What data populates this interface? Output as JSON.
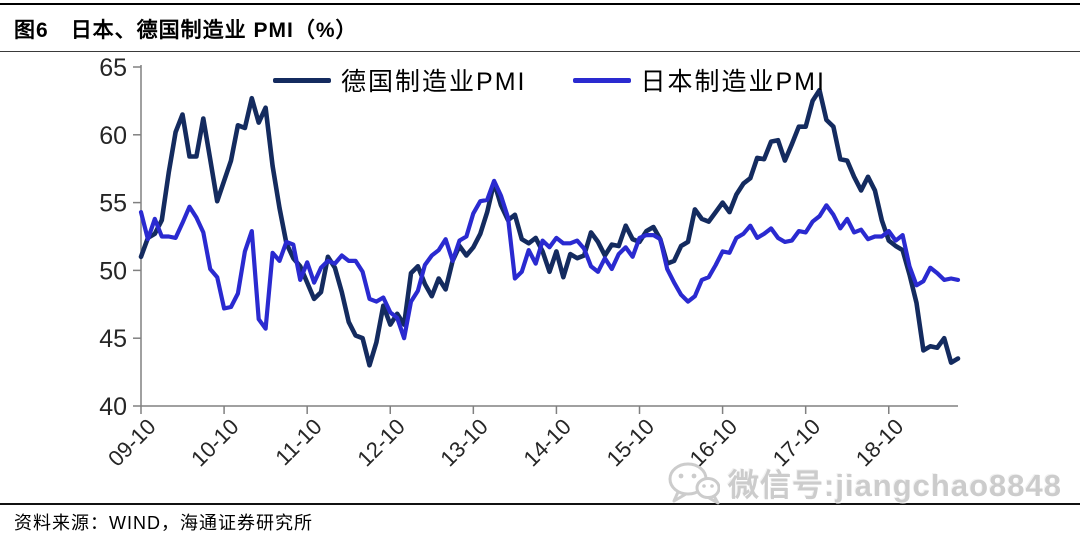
{
  "header": {
    "figure_label": "图6",
    "title": "日本、德国制造业 PMI（%）"
  },
  "source": {
    "label": "资料来源：WIND，海通证券研究所"
  },
  "watermark": {
    "icon": "wechat-icon",
    "text": "微信号:jiangchao8848"
  },
  "chart_data": {
    "type": "line",
    "title": "日本、德国制造业 PMI（%）",
    "ylabel": "PMI (%)",
    "ylim": [
      40,
      65
    ],
    "y_ticks": [
      65,
      60,
      55,
      50,
      45,
      40
    ],
    "grid": false,
    "legend_position": "top-center",
    "frequency": "monthly",
    "x_start": "2009-10",
    "x_end": "2019-08",
    "x_tick_labels": [
      "09-10",
      "10-10",
      "11-10",
      "12-10",
      "13-10",
      "14-10",
      "15-10",
      "16-10",
      "17-10",
      "18-10"
    ],
    "x_tick_month_indices": [
      0,
      12,
      24,
      36,
      48,
      60,
      72,
      84,
      96,
      108
    ],
    "axis_color": "#808080",
    "label_color": "#262626",
    "series": [
      {
        "name": "德国制造业PMI",
        "color": "#142B5F",
        "values": [
          51.0,
          52.4,
          52.7,
          53.7,
          57.2,
          60.2,
          61.5,
          58.4,
          58.4,
          61.2,
          58.2,
          55.1,
          56.6,
          58.1,
          60.7,
          60.5,
          62.7,
          60.9,
          62.0,
          57.7,
          54.6,
          52.0,
          50.9,
          50.3,
          49.1,
          47.9,
          48.4,
          51.0,
          50.2,
          48.4,
          46.2,
          45.2,
          45.0,
          43.0,
          44.7,
          47.4,
          46.0,
          46.8,
          46.0,
          49.8,
          50.3,
          49.0,
          48.1,
          49.4,
          48.6,
          50.7,
          51.8,
          51.1,
          51.7,
          52.7,
          54.3,
          56.5,
          54.8,
          53.7,
          54.1,
          52.3,
          52.0,
          52.4,
          51.4,
          49.9,
          51.4,
          49.5,
          51.2,
          50.9,
          51.1,
          52.8,
          52.1,
          51.1,
          51.9,
          51.8,
          53.3,
          52.3,
          52.1,
          52.9,
          53.2,
          52.3,
          50.5,
          50.7,
          51.8,
          52.1,
          54.5,
          53.8,
          53.6,
          54.3,
          55.0,
          54.3,
          55.6,
          56.4,
          56.8,
          58.3,
          58.2,
          59.5,
          59.6,
          58.1,
          59.3,
          60.6,
          60.6,
          62.5,
          63.3,
          61.1,
          60.6,
          58.2,
          58.1,
          56.9,
          55.9,
          56.9,
          55.9,
          53.7,
          52.2,
          51.8,
          51.5,
          49.7,
          47.6,
          44.1,
          44.4,
          44.3,
          45.0,
          43.2,
          43.5
        ]
      },
      {
        "name": "日本制造业PMI",
        "color": "#2A2AD0",
        "values": [
          54.3,
          52.3,
          53.8,
          52.5,
          52.5,
          52.4,
          53.5,
          54.7,
          53.9,
          52.8,
          50.1,
          49.5,
          47.2,
          47.3,
          48.3,
          51.4,
          52.9,
          46.4,
          45.7,
          51.3,
          50.7,
          52.1,
          51.9,
          49.3,
          50.6,
          49.1,
          50.2,
          50.7,
          50.5,
          51.1,
          50.7,
          50.7,
          49.9,
          47.9,
          47.7,
          48.0,
          46.9,
          46.5,
          45.0,
          47.7,
          48.5,
          50.4,
          51.1,
          51.5,
          52.3,
          50.7,
          52.2,
          52.5,
          54.2,
          55.1,
          55.2,
          56.6,
          55.5,
          53.9,
          49.4,
          49.9,
          51.5,
          50.5,
          52.2,
          51.7,
          52.4,
          52.0,
          52.0,
          52.2,
          51.6,
          50.3,
          49.9,
          50.9,
          50.1,
          51.2,
          51.7,
          51.0,
          52.4,
          52.6,
          52.6,
          52.3,
          50.1,
          49.1,
          48.2,
          47.7,
          48.1,
          49.3,
          49.5,
          50.4,
          51.4,
          51.3,
          52.4,
          52.7,
          53.3,
          52.4,
          52.7,
          53.1,
          52.4,
          52.1,
          52.2,
          52.9,
          52.8,
          53.6,
          54.0,
          54.8,
          54.1,
          53.1,
          53.8,
          52.8,
          53.0,
          52.3,
          52.5,
          52.5,
          52.9,
          52.2,
          52.6,
          50.3,
          48.9,
          49.2,
          50.2,
          49.8,
          49.3,
          49.4,
          49.3
        ]
      }
    ]
  }
}
